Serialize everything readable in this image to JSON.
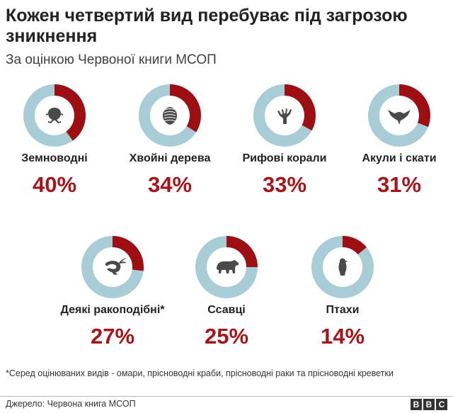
{
  "title": "Кожен четвертий вид перебуває під загрозою зникнення",
  "subtitle": "За оцінкою Червоної книги МСОП",
  "chart_data": {
    "type": "pie",
    "charts": [
      {
        "label": "Земноводні",
        "percent_text": "40%",
        "value": 40,
        "icon": "frog-icon"
      },
      {
        "label": "Хвойні дерева",
        "percent_text": "34%",
        "value": 34,
        "icon": "pinecone-icon"
      },
      {
        "label": "Рифові корали",
        "percent_text": "33%",
        "value": 33,
        "icon": "coral-icon"
      },
      {
        "label": "Акули і скати",
        "percent_text": "31%",
        "value": 31,
        "icon": "ray-icon"
      },
      {
        "label": "Деякі ракоподібні*",
        "percent_text": "27%",
        "value": 27,
        "icon": "shrimp-icon"
      },
      {
        "label": "Ссавці",
        "percent_text": "25%",
        "value": 25,
        "icon": "bear-icon"
      },
      {
        "label": "Птахи",
        "percent_text": "14%",
        "value": 14,
        "icon": "bird-icon"
      }
    ]
  },
  "colors": {
    "threatened": "#9e0f14",
    "rest": "#a8cdd7",
    "icon": "#4a4a4a",
    "percent": "#a4161a"
  },
  "footnote": "*Серед оцінюваних видів - омари, прісноводні краби, прісноводні раки та прісноводні креветки",
  "source": "Джерело: Червона книга МСОП",
  "logo": [
    "B",
    "B",
    "C"
  ]
}
